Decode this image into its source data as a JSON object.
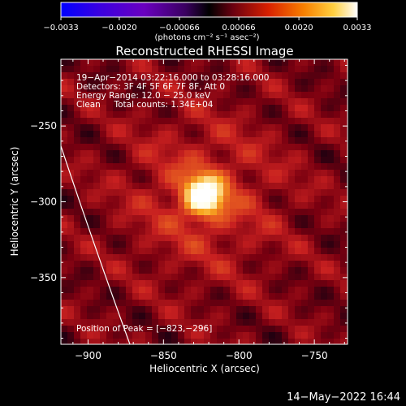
{
  "colorbar": {
    "ticks": [
      "−0.0033",
      "−0.0020",
      "−0.00066",
      "0.00066",
      "0.0020",
      "0.0033"
    ],
    "tick_values": [
      -0.0033,
      -0.002,
      -0.00066,
      0.00066,
      0.002,
      0.0033
    ],
    "range": [
      -0.0033,
      0.0033
    ],
    "units_label": "(photons cm⁻² s⁻¹ asec⁻²)"
  },
  "title": "Reconstructed RHESSI Image",
  "info": {
    "line1": "19−Apr−2014 03:22:16.000 to 03:28:16.000",
    "line2": "Detectors: 3F 4F 5F 6F 7F 8F, Att 0",
    "line3": "Energy Range: 12.0 − 25.0 keV",
    "line4": "Clean     Total counts: 1.34E+04"
  },
  "peak_label": "Position of Peak = [−823,−296]",
  "footer_timestamp": "14−May−2022 16:44",
  "chart_data": {
    "type": "heatmap",
    "title": "Reconstructed RHESSI Image",
    "xlabel": "Heliocentric X (arcsec)",
    "ylabel": "Heliocentric Y (arcsec)",
    "xlim": [
      -918,
      -728
    ],
    "ylim": [
      -394,
      -206
    ],
    "x_ticks": [
      -900,
      -850,
      -800,
      -750
    ],
    "x_tick_labels": [
      "−900",
      "−850",
      "−800",
      "−750"
    ],
    "y_ticks": [
      -250,
      -300,
      -350
    ],
    "y_tick_labels": [
      "−250",
      "−300",
      "−350"
    ],
    "peak": {
      "x": -823,
      "y": -296
    },
    "value_range": [
      -0.0033,
      0.0033
    ],
    "colormap": [
      "#0000ff",
      "#5a00a0",
      "#3a0060",
      "#1a0010",
      "#7a0010",
      "#c82020",
      "#e86020",
      "#f8a820",
      "#fff8c8",
      "#ffffff"
    ]
  }
}
